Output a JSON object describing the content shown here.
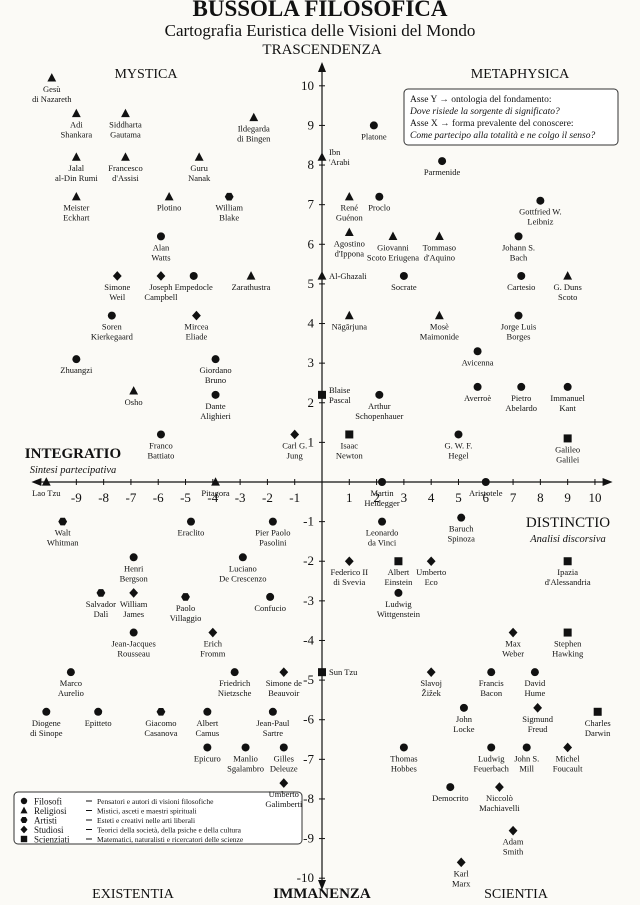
{
  "chart_data": {
    "type": "scatter",
    "title": "BUSSOLA FILOSOFICA",
    "subtitle": "Cartografia Euristica delle Visioni del Mondo",
    "y_top_label": "TRASCENDENZA",
    "y_bottom_label": "IMMANENZA",
    "x_left_label": "INTEGRATIO",
    "x_left_sublabel": "Sintesi partecipativa",
    "x_right_label": "DISTINCTIO",
    "x_right_sublabel": "Analisi discorsiva",
    "quadrants": [
      "MYSTICA",
      "METAPHYSICA",
      "EXISTENTIA",
      "SCIENTIA"
    ],
    "note": [
      "Asse Y → ontologia del fondamento:",
      "Dove risiede la sorgente di significato?",
      "Asse X → forma prevalente del conoscere:",
      "Come partecipo alla totalità e ne colgo il senso?"
    ],
    "xlim": [
      -10.5,
      10.5
    ],
    "ylim": [
      -10.5,
      10.5
    ],
    "xticks": [
      -9,
      -8,
      -7,
      -6,
      -5,
      -4,
      -3,
      -2,
      -1,
      1,
      2,
      3,
      4,
      5,
      6,
      7,
      8,
      9,
      10
    ],
    "yticks": [
      10,
      9,
      8,
      7,
      6,
      5,
      4,
      3,
      2,
      1,
      -1,
      -2,
      -3,
      -4,
      -5,
      -6,
      -7,
      -8,
      -9,
      -10
    ],
    "legend": "bottom-left",
    "series": [
      {
        "name": "Filosofi",
        "description": "Pensatori e autori di visioni filosofiche",
        "marker": "circle",
        "color": "#111111",
        "x": [
          1.9,
          4.4,
          2.1,
          8.0,
          7.2,
          3.0,
          7.3,
          7.2,
          5.7,
          5.7,
          7.3,
          9.0,
          2.1,
          5.0,
          2.2,
          6.0,
          -5.9,
          -4.7,
          -7.7,
          -9.0,
          -3.9,
          -3.9,
          -5.9,
          -4.8,
          -1.8,
          -6.9,
          -2.9,
          -1.9,
          -6.9,
          -3.2,
          -9.2,
          -10.1,
          -8.2,
          -4.2,
          -1.8,
          -4.2,
          -2.8,
          -1.4,
          2.2,
          5.1,
          6.2,
          7.8,
          5.2,
          6.2,
          7.5,
          3.0,
          4.7,
          2.8
        ],
        "y": [
          9.0,
          8.1,
          7.2,
          7.1,
          6.2,
          5.2,
          5.2,
          4.2,
          3.3,
          2.4,
          2.4,
          2.4,
          2.2,
          1.2,
          0,
          0,
          6.2,
          5.2,
          4.2,
          3.1,
          3.1,
          2.2,
          1.2,
          -1.0,
          -1.0,
          -1.9,
          -1.9,
          -2.9,
          -3.8,
          -4.8,
          -4.8,
          -5.8,
          -5.8,
          -5.8,
          -5.8,
          -6.7,
          -6.7,
          -6.7,
          -1.0,
          -0.9,
          -4.8,
          -4.8,
          -5.7,
          -6.7,
          -6.7,
          -6.7,
          -7.7,
          -2.8
        ],
        "labels": [
          [
            "Platone"
          ],
          [
            "Parmenide"
          ],
          [
            "Proclo"
          ],
          [
            "Gottfried W.",
            "Leibniz"
          ],
          [
            "Johann S.",
            "Bach"
          ],
          [
            "Socrate"
          ],
          [
            "Cartesio"
          ],
          [
            "Jorge Luis",
            "Borges"
          ],
          [
            "Avicenna"
          ],
          [
            "Averroè"
          ],
          [
            "Pietro",
            "Abelardo"
          ],
          [
            "Immanuel",
            "Kant"
          ],
          [
            "Arthur",
            "Schopenhauer"
          ],
          [
            "G. W. F.",
            "Hegel"
          ],
          [
            "Martin",
            "Heidegger"
          ],
          [
            "Aristotele"
          ],
          [
            "Alan",
            "Watts"
          ],
          [
            "Empedocle"
          ],
          [
            "Soren",
            "Kierkegaard"
          ],
          [
            "Zhuangzi"
          ],
          [
            "Giordano",
            "Bruno"
          ],
          [
            "Dante",
            "Alighieri"
          ],
          [
            "Franco",
            "Battiato"
          ],
          [
            "Eraclito"
          ],
          [
            "Pier Paolo",
            "Pasolini"
          ],
          [
            "Henri",
            "Bergson"
          ],
          [
            "Luciano",
            "De Crescenzo"
          ],
          [
            "Confucio"
          ],
          [
            "Jean-Jacques",
            "Rousseau"
          ],
          [
            "Friedrich",
            "Nietzsche"
          ],
          [
            "Marco",
            "Aurelio"
          ],
          [
            "Diogene",
            "di Sinope"
          ],
          [
            "Epitteto"
          ],
          [
            "Albert",
            "Camus"
          ],
          [
            "Jean-Paul",
            "Sartre"
          ],
          [
            "Epicuro"
          ],
          [
            "Manlio",
            "Sgalambro"
          ],
          [
            "Gilles",
            "Deleuze"
          ],
          [
            "Leonardo",
            "da Vinci"
          ],
          [
            "Baruch",
            "Spinoza"
          ],
          [
            "Francis",
            "Bacon"
          ],
          [
            "David",
            "Hume"
          ],
          [
            "John",
            "Locke"
          ],
          [
            "Ludwig",
            "Feuerbach"
          ],
          [
            "John S.",
            "Mill"
          ],
          [
            "Thomas",
            "Hobbes"
          ],
          [
            "Democrito"
          ],
          [
            "Ludwig",
            "Wittgenstein"
          ]
        ]
      },
      {
        "name": "Religiosi",
        "description": "Mistici, asceti e maestri spirituali",
        "marker": "triangle",
        "color": "#111111",
        "x": [
          -9.9,
          -9.0,
          -7.2,
          -2.5,
          -9.0,
          -7.2,
          -4.5,
          -9.0,
          -5.6,
          -2.6,
          -3.9,
          -10.1,
          -6.9,
          0,
          0,
          1.0,
          1.0,
          2.6,
          4.3,
          1.0,
          4.3,
          9.0
        ],
        "y": [
          10.2,
          9.3,
          9.3,
          9.2,
          8.2,
          8.2,
          8.2,
          7.2,
          7.2,
          5.2,
          0,
          0,
          2.3,
          8.2,
          5.2,
          7.2,
          6.3,
          6.2,
          6.2,
          4.2,
          4.2,
          5.2
        ],
        "labels": [
          [
            "Gesù",
            "di Nazareth"
          ],
          [
            "Adi",
            "Shankara"
          ],
          [
            "Siddharta",
            "Gautama"
          ],
          [
            "Ildegarda",
            "di Bingen"
          ],
          [
            "Jalal",
            "al-Din Rumi"
          ],
          [
            "Francesco",
            "d'Assisi"
          ],
          [
            "Guru",
            "Nanak"
          ],
          [
            "Meister",
            "Eckhart"
          ],
          [
            "Plotino"
          ],
          [
            "Zarathustra"
          ],
          [
            "Pitagora"
          ],
          [
            "Lao Tzu"
          ],
          [
            "Osho"
          ],
          [
            "Ibn",
            "'Arabi"
          ],
          [
            "Al-Ghazali"
          ],
          [
            "René",
            "Guénon"
          ],
          [
            "Agostino",
            "d'Ippona"
          ],
          [
            "Giovanni",
            "Scoto Eriugena"
          ],
          [
            "Tommaso",
            "d'Aquino"
          ],
          [
            "Nāgārjuna"
          ],
          [
            "Mosè",
            "Maimonide"
          ],
          [
            "G. Duns",
            "Scoto"
          ]
        ]
      },
      {
        "name": "Artisti",
        "description": "Esteti e creativi nelle arti liberali",
        "marker": "hexagon",
        "color": "#111111",
        "x": [
          -3.4,
          -9.5,
          -8.1,
          -5.0,
          -5.9
        ],
        "y": [
          7.2,
          -1.0,
          -2.8,
          -2.9,
          -5.8
        ],
        "labels": [
          [
            "William",
            "Blake"
          ],
          [
            "Walt",
            "Whitman"
          ],
          [
            "Salvador",
            "Dalì"
          ],
          [
            "Paolo",
            "Villaggio"
          ],
          [
            "Giacomo",
            "Casanova"
          ]
        ]
      },
      {
        "name": "Studiosi",
        "description": "Teorici della società, della psiche e della cultura",
        "marker": "diamond",
        "color": "#111111",
        "x": [
          -7.5,
          -5.9,
          -4.6,
          -1.0,
          -6.9,
          -4.0,
          -1.4,
          1.0,
          4.0,
          7.0,
          4.0,
          7.9,
          9.0,
          6.5,
          7.0,
          5.1,
          -1.4
        ],
        "y": [
          5.2,
          5.2,
          4.2,
          1.2,
          -2.8,
          -3.8,
          -4.8,
          -2.0,
          -2.0,
          -3.8,
          -4.8,
          -5.7,
          -6.7,
          -7.7,
          -8.8,
          -9.6,
          -7.6
        ],
        "labels": [
          [
            "Simone",
            "Weil"
          ],
          [
            "Joseph",
            "Campbell"
          ],
          [
            "Mircea",
            "Eliade"
          ],
          [
            "Carl G.",
            "Jung"
          ],
          [
            "William",
            "James"
          ],
          [
            "Erich",
            "Fromm"
          ],
          [
            "Simone de",
            "Beauvoir"
          ],
          [
            "Federico II",
            "di Svevia"
          ],
          [
            "Umberto",
            "Eco"
          ],
          [
            "Max",
            "Weber"
          ],
          [
            "Slavoj",
            "Žižek"
          ],
          [
            "Sigmund",
            "Freud"
          ],
          [
            "Michel",
            "Foucault"
          ],
          [
            "Niccolò",
            "Machiavelli"
          ],
          [
            "Adam",
            "Smith"
          ],
          [
            "Karl",
            "Marx"
          ],
          [
            "Umberto",
            "Galimberti"
          ]
        ]
      },
      {
        "name": "Scienziati",
        "description": "Matematici, naturalisti e ricercatori delle scienze",
        "marker": "square",
        "color": "#111111",
        "x": [
          0,
          1.0,
          9.0,
          2.8,
          9.0,
          9.0,
          10.1,
          0
        ],
        "y": [
          2.2,
          1.2,
          1.1,
          -2.0,
          -2.0,
          -3.8,
          -5.8,
          -4.8
        ],
        "labels": [
          [
            "Blaise",
            "Pascal"
          ],
          [
            "Isaac",
            "Newton"
          ],
          [
            "Galileo",
            "Galilei"
          ],
          [
            "Albert",
            "Einstein"
          ],
          [
            "Ipazia",
            "d'Alessandria"
          ],
          [
            "Stephen",
            "Hawking"
          ],
          [
            "Charles",
            "Darwin"
          ],
          [
            "Sun Tzu"
          ]
        ]
      }
    ]
  }
}
